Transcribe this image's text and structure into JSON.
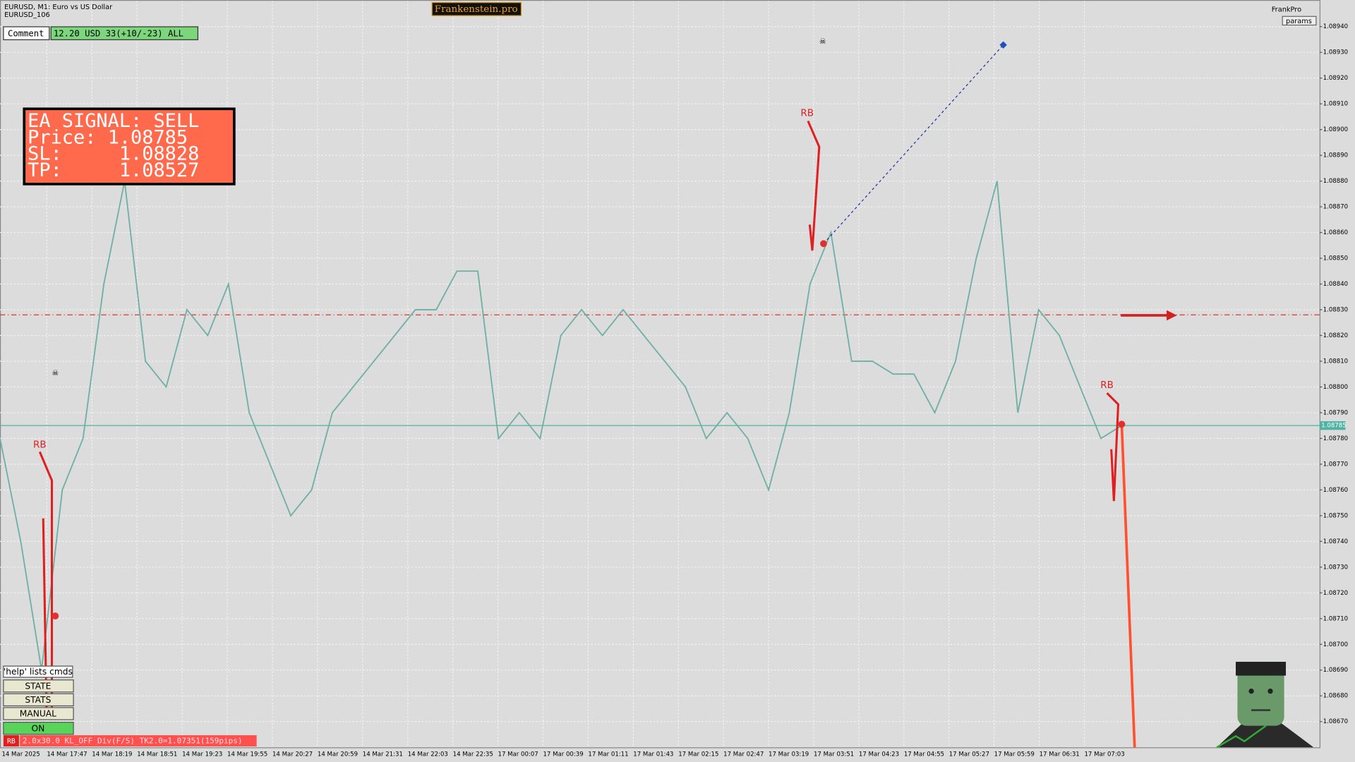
{
  "header": {
    "symbol": "EURUSD, M1:  Euro vs US Dollar",
    "account": "EURUSD_106",
    "brand": "Frankenstein.pro",
    "user": "FrankPro",
    "params": "params"
  },
  "comment": {
    "label": "Comment",
    "value": "12.20 USD 33(+10/-23) ALL"
  },
  "signal": {
    "lines": [
      "EA SIGNAL: SELL",
      "Price: 1.08785",
      "SL:     1.08828",
      "TP:     1.08527"
    ]
  },
  "markers": [
    "RB",
    "RB",
    "RB"
  ],
  "buttons": [
    "'help' lists cmds",
    "STATE",
    "STATS",
    "MANUAL",
    "ON"
  ],
  "status": {
    "tag": "RB",
    "text": "2.0x30.0 KL_OFF Div(F/S) TK2.0=1.07351(159pips)"
  },
  "chart_data": {
    "type": "line",
    "title": "EURUSD, M1",
    "color": "#6fb0a4",
    "values": [
      1.0878,
      1.0874,
      1.0869,
      1.0876,
      1.0878,
      1.0884,
      1.0888,
      1.0881,
      1.088,
      1.0883,
      1.0882,
      1.0884,
      1.0879,
      1.0877,
      1.0875,
      1.0876,
      1.0879,
      1.088,
      1.0881,
      1.0882,
      1.0883,
      1.0883,
      1.08845,
      1.08845,
      1.0878,
      1.0879,
      1.0878,
      1.0882,
      1.0883,
      1.0882,
      1.0883,
      1.0882,
      1.0881,
      1.088,
      1.0878,
      1.0879,
      1.0878,
      1.0876,
      1.0879,
      1.0884,
      1.0886,
      1.0881,
      1.0881,
      1.08805,
      1.08805,
      1.0879,
      1.0881,
      1.0885,
      1.0888,
      1.0879,
      1.0883,
      1.0882,
      1.088,
      1.0878,
      1.08785
    ],
    "x_labels": [
      "14 Mar 2025",
      "14 Mar 17:47",
      "14 Mar 18:19",
      "14 Mar 18:51",
      "14 Mar 19:23",
      "14 Mar 19:55",
      "14 Mar 20:27",
      "14 Mar 20:59",
      "14 Mar 21:31",
      "14 Mar 22:03",
      "14 Mar 22:35",
      "17 Mar 00:07",
      "17 Mar 00:39",
      "17 Mar 01:11",
      "17 Mar 01:43",
      "17 Mar 02:15",
      "17 Mar 02:47",
      "17 Mar 03:19",
      "17 Mar 03:51",
      "17 Mar 04:23",
      "17 Mar 04:55",
      "17 Mar 05:27",
      "17 Mar 05:59",
      "17 Mar 06:31",
      "17 Mar 07:03"
    ],
    "ylim": [
      1.0866,
      1.0895
    ],
    "yticks": [
      {
        "value": 1.0867,
        "label": "1.08670"
      },
      {
        "value": 1.0868,
        "label": "1.08680"
      },
      {
        "value": 1.0869,
        "label": "1.08690"
      },
      {
        "value": 1.087,
        "label": "1.08700"
      },
      {
        "value": 1.0871,
        "label": "1.08710"
      },
      {
        "value": 1.0872,
        "label": "1.08720"
      },
      {
        "value": 1.0873,
        "label": "1.08730"
      },
      {
        "value": 1.0874,
        "label": "1.08740"
      },
      {
        "value": 1.0875,
        "label": "1.08750"
      },
      {
        "value": 1.0876,
        "label": "1.08760"
      },
      {
        "value": 1.0877,
        "label": "1.08770"
      },
      {
        "value": 1.0878,
        "label": "1.08780"
      },
      {
        "value": 1.0879,
        "label": "1.08790"
      },
      {
        "value": 1.088,
        "label": "1.08800"
      },
      {
        "value": 1.0881,
        "label": "1.08810"
      },
      {
        "value": 1.0882,
        "label": "1.08820"
      },
      {
        "value": 1.0883,
        "label": "1.08830"
      },
      {
        "value": 1.0884,
        "label": "1.08840"
      },
      {
        "value": 1.0885,
        "label": "1.08850"
      },
      {
        "value": 1.0886,
        "label": "1.08860"
      },
      {
        "value": 1.0887,
        "label": "1.08870"
      },
      {
        "value": 1.0888,
        "label": "1.08880"
      },
      {
        "value": 1.0889,
        "label": "1.08890"
      },
      {
        "value": 1.089,
        "label": "1.08900"
      },
      {
        "value": 1.0891,
        "label": "1.08910"
      },
      {
        "value": 1.0892,
        "label": "1.08920"
      },
      {
        "value": 1.0893,
        "label": "1.08930"
      },
      {
        "value": 1.0894,
        "label": "1.08940"
      }
    ],
    "grid": true,
    "levels": [
      {
        "value": 1.08828,
        "color": "#e03030"
      },
      {
        "value": 1.08785,
        "color": "#4fb3a3",
        "label": "1.08785"
      }
    ]
  }
}
